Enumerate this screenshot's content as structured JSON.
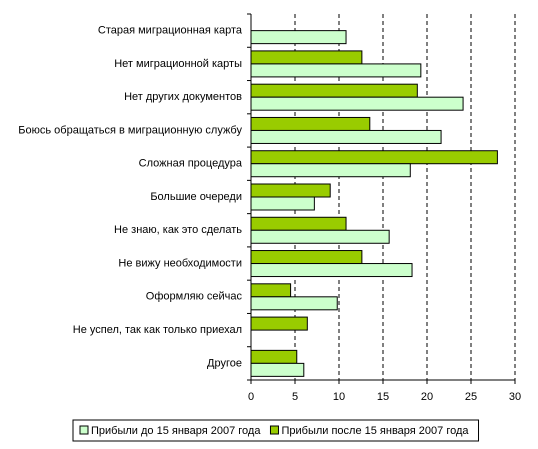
{
  "chart_data": {
    "type": "bar",
    "orientation": "horizontal",
    "categories": [
      "Старая миграционная карта",
      "Нет миграционной карты",
      "Нет других документов",
      "Боюсь обращаться в миграционную службу",
      "Сложная процедура",
      "Большие очереди",
      "Не знаю, как это сделать",
      "Не вижу необходимости",
      "Оформляю сейчас",
      "Не успел, так как только приехал",
      "Другое"
    ],
    "series": [
      {
        "name": "Прибыли до 15 января 2007 года",
        "color": "#ccffcc",
        "values": [
          10.8,
          19.3,
          24.1,
          21.6,
          18.1,
          7.2,
          15.7,
          18.3,
          9.8,
          null,
          6.0
        ]
      },
      {
        "name": "Прибыли после 15 января 2007 года",
        "color": "#99cc00",
        "values": [
          null,
          12.6,
          18.9,
          13.5,
          28.0,
          9.0,
          10.8,
          12.6,
          4.5,
          6.4,
          5.2
        ]
      }
    ],
    "xlim": [
      0,
      30
    ],
    "xticks": [
      0,
      5,
      10,
      15,
      20,
      25,
      30
    ],
    "grid": true,
    "legend": "bottom"
  }
}
